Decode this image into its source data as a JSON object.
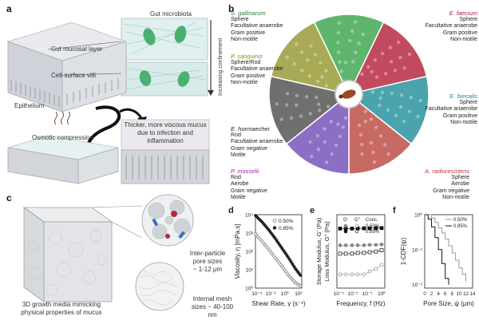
{
  "panels": {
    "a": {
      "label": "a",
      "gut_microbiota": "Gut microbiota",
      "gut_mucosal_layer": "Gut mucosal layer",
      "cell_surface_villi": "Cell-surface villi",
      "increasing_confinement": "Increasing confinement",
      "epithelium": "Epithelium",
      "osmotic_compression": "Osmotic compression",
      "thicker_mucus_1": "Thicker, more viscous mucus",
      "thicker_mucus_2": "due to infection and inflammation"
    },
    "b": {
      "label": "b",
      "species": [
        {
          "name": "S. gallinarum",
          "color": "#2e7d32",
          "props": [
            "Sphere",
            "Facultative anaerobe",
            "Gram positive",
            "Non-motile"
          ]
        },
        {
          "name": "E. faecium",
          "color": "#b71c3c",
          "props": [
            "Sphere",
            "Facultative anaerobe",
            "Gram positive",
            "Non-motile"
          ]
        },
        {
          "name": "P. sanguinis",
          "color": "#8a8a10",
          "props": [
            "Sphere/Rod",
            "Facultative anaerobe",
            "Gram positive",
            "Non-motile"
          ]
        },
        {
          "name": "E. faecalis",
          "color": "#1f8a9a",
          "props": [
            "Sphere",
            "Facultative anaerobe",
            "Gram positive",
            "Non-motile"
          ]
        },
        {
          "name": "E. hormaechei",
          "color": "#222222",
          "props": [
            "Rod",
            "Facultative anaerobe",
            "Gram negative",
            "Motile"
          ]
        },
        {
          "name": "P. mosselii",
          "color": "#a020a0",
          "props": [
            "Rod",
            "Aerobe",
            "Gram negative",
            "Motile"
          ]
        },
        {
          "name": "A. radioresistens",
          "color": "#c0392b",
          "props": [
            "Sphere",
            "Aerobe",
            "Gram negative",
            "Non-motile"
          ]
        }
      ],
      "wedge_colors": [
        "#5fb56d",
        "#c24a5f",
        "#a9aa55",
        "#4aa3ad",
        "#6f6f6f",
        "#8b6fc4",
        "#c86a64"
      ]
    },
    "c": {
      "label": "c",
      "caption_1": "3D growth media mimicking",
      "caption_2": "physical properties of mucus",
      "inter_particle_1": "Inter-particle",
      "inter_particle_2": "pore sizes",
      "inter_particle_3": "~ 1-12 μm",
      "mesh_1": "Internal mesh",
      "mesh_2": "sizes ~ 40-100 nm"
    }
  },
  "chart_data": [
    {
      "panel": "d",
      "type": "scatter",
      "xlabel": "Shear Rate, γ̇ (s⁻¹)",
      "ylabel": "Viscosity, η [mPa.s]",
      "xscale": "log",
      "yscale": "log",
      "xticks": [
        "10⁻⁴",
        "10⁻²",
        "10⁰",
        "10²"
      ],
      "yticks": [
        "10⁰",
        "10¹",
        "10²",
        "10³",
        "10⁴"
      ],
      "xlim": [
        0.0001,
        1000
      ],
      "ylim": [
        1,
        10000
      ],
      "legend": "top-right",
      "series": [
        {
          "name": "0.50%",
          "marker": "open",
          "x": [
            0.0001,
            0.001,
            0.01,
            0.1,
            1,
            10,
            100,
            1000
          ],
          "y": [
            900,
            350,
            130,
            45,
            15,
            5,
            2,
            1.2
          ]
        },
        {
          "name": "0.85%",
          "marker": "filled",
          "x": [
            0.0001,
            0.001,
            0.01,
            0.1,
            1,
            10,
            100,
            1000
          ],
          "y": [
            9000,
            4000,
            1500,
            500,
            150,
            45,
            12,
            4
          ]
        }
      ]
    },
    {
      "panel": "e",
      "type": "scatter",
      "xlabel": "Frequency, f (Hz)",
      "ylabel_1": "Storage Modulus, G' (Pa)",
      "ylabel_2": "Loss Modulus, G'' (Pa)",
      "xscale": "log",
      "xticks": [
        "10⁻³",
        "10⁻²",
        "10⁻¹",
        "10⁰"
      ],
      "legend_header": [
        "G'",
        "G''",
        "Conc."
      ],
      "legend_rows": [
        "0.50%",
        "0.85%"
      ],
      "series": [
        {
          "name": "G' 0.85%",
          "marker": "filled-square",
          "x": [
            0.001,
            0.003,
            0.01,
            0.03,
            0.1,
            0.3,
            1,
            3
          ],
          "y": [
            110,
            110,
            110,
            112,
            112,
            112,
            113,
            114
          ]
        },
        {
          "name": "G' 0.50%",
          "marker": "filled-circle",
          "x": [
            0.001,
            0.003,
            0.01,
            0.03,
            0.1,
            0.3,
            1,
            3
          ],
          "y": [
            33,
            33,
            33,
            33,
            33,
            34,
            34,
            35
          ]
        },
        {
          "name": "G'' 0.85%",
          "marker": "open-square",
          "x": [
            0.001,
            0.003,
            0.01,
            0.03,
            0.1,
            0.3,
            1,
            3
          ],
          "y": [
            18,
            18,
            18,
            19,
            19,
            20,
            21,
            23
          ]
        },
        {
          "name": "G'' 0.50%",
          "marker": "open-circle",
          "x": [
            0.001,
            0.003,
            0.01,
            0.03,
            0.1,
            0.3,
            1,
            3
          ],
          "y": [
            4,
            4,
            4,
            4,
            4,
            5,
            6,
            8
          ]
        }
      ]
    },
    {
      "panel": "f",
      "type": "line",
      "xlabel": "Pore Size, ψ (μm)",
      "ylabel": "1-CDF(ψ)",
      "yscale": "log",
      "xticks": [
        "0",
        "2",
        "4",
        "6",
        "8",
        "10",
        "12",
        "14"
      ],
      "yticks": [
        "10⁻²",
        "10⁻¹",
        "10⁰"
      ],
      "xlim": [
        0,
        14
      ],
      "legend": "top-right",
      "series": [
        {
          "name": "0.50%",
          "color": "#999999",
          "x": [
            0,
            2,
            3,
            4,
            5,
            6,
            7,
            8,
            9,
            10,
            11,
            12
          ],
          "y": [
            1,
            0.8,
            0.6,
            0.42,
            0.3,
            0.2,
            0.13,
            0.08,
            0.05,
            0.03,
            0.02,
            0.012
          ]
        },
        {
          "name": "0.85%",
          "color": "#111111",
          "x": [
            0,
            1,
            2,
            3,
            4,
            5,
            6,
            7
          ],
          "y": [
            1,
            0.75,
            0.45,
            0.22,
            0.1,
            0.04,
            0.015,
            0.01
          ]
        }
      ]
    }
  ]
}
